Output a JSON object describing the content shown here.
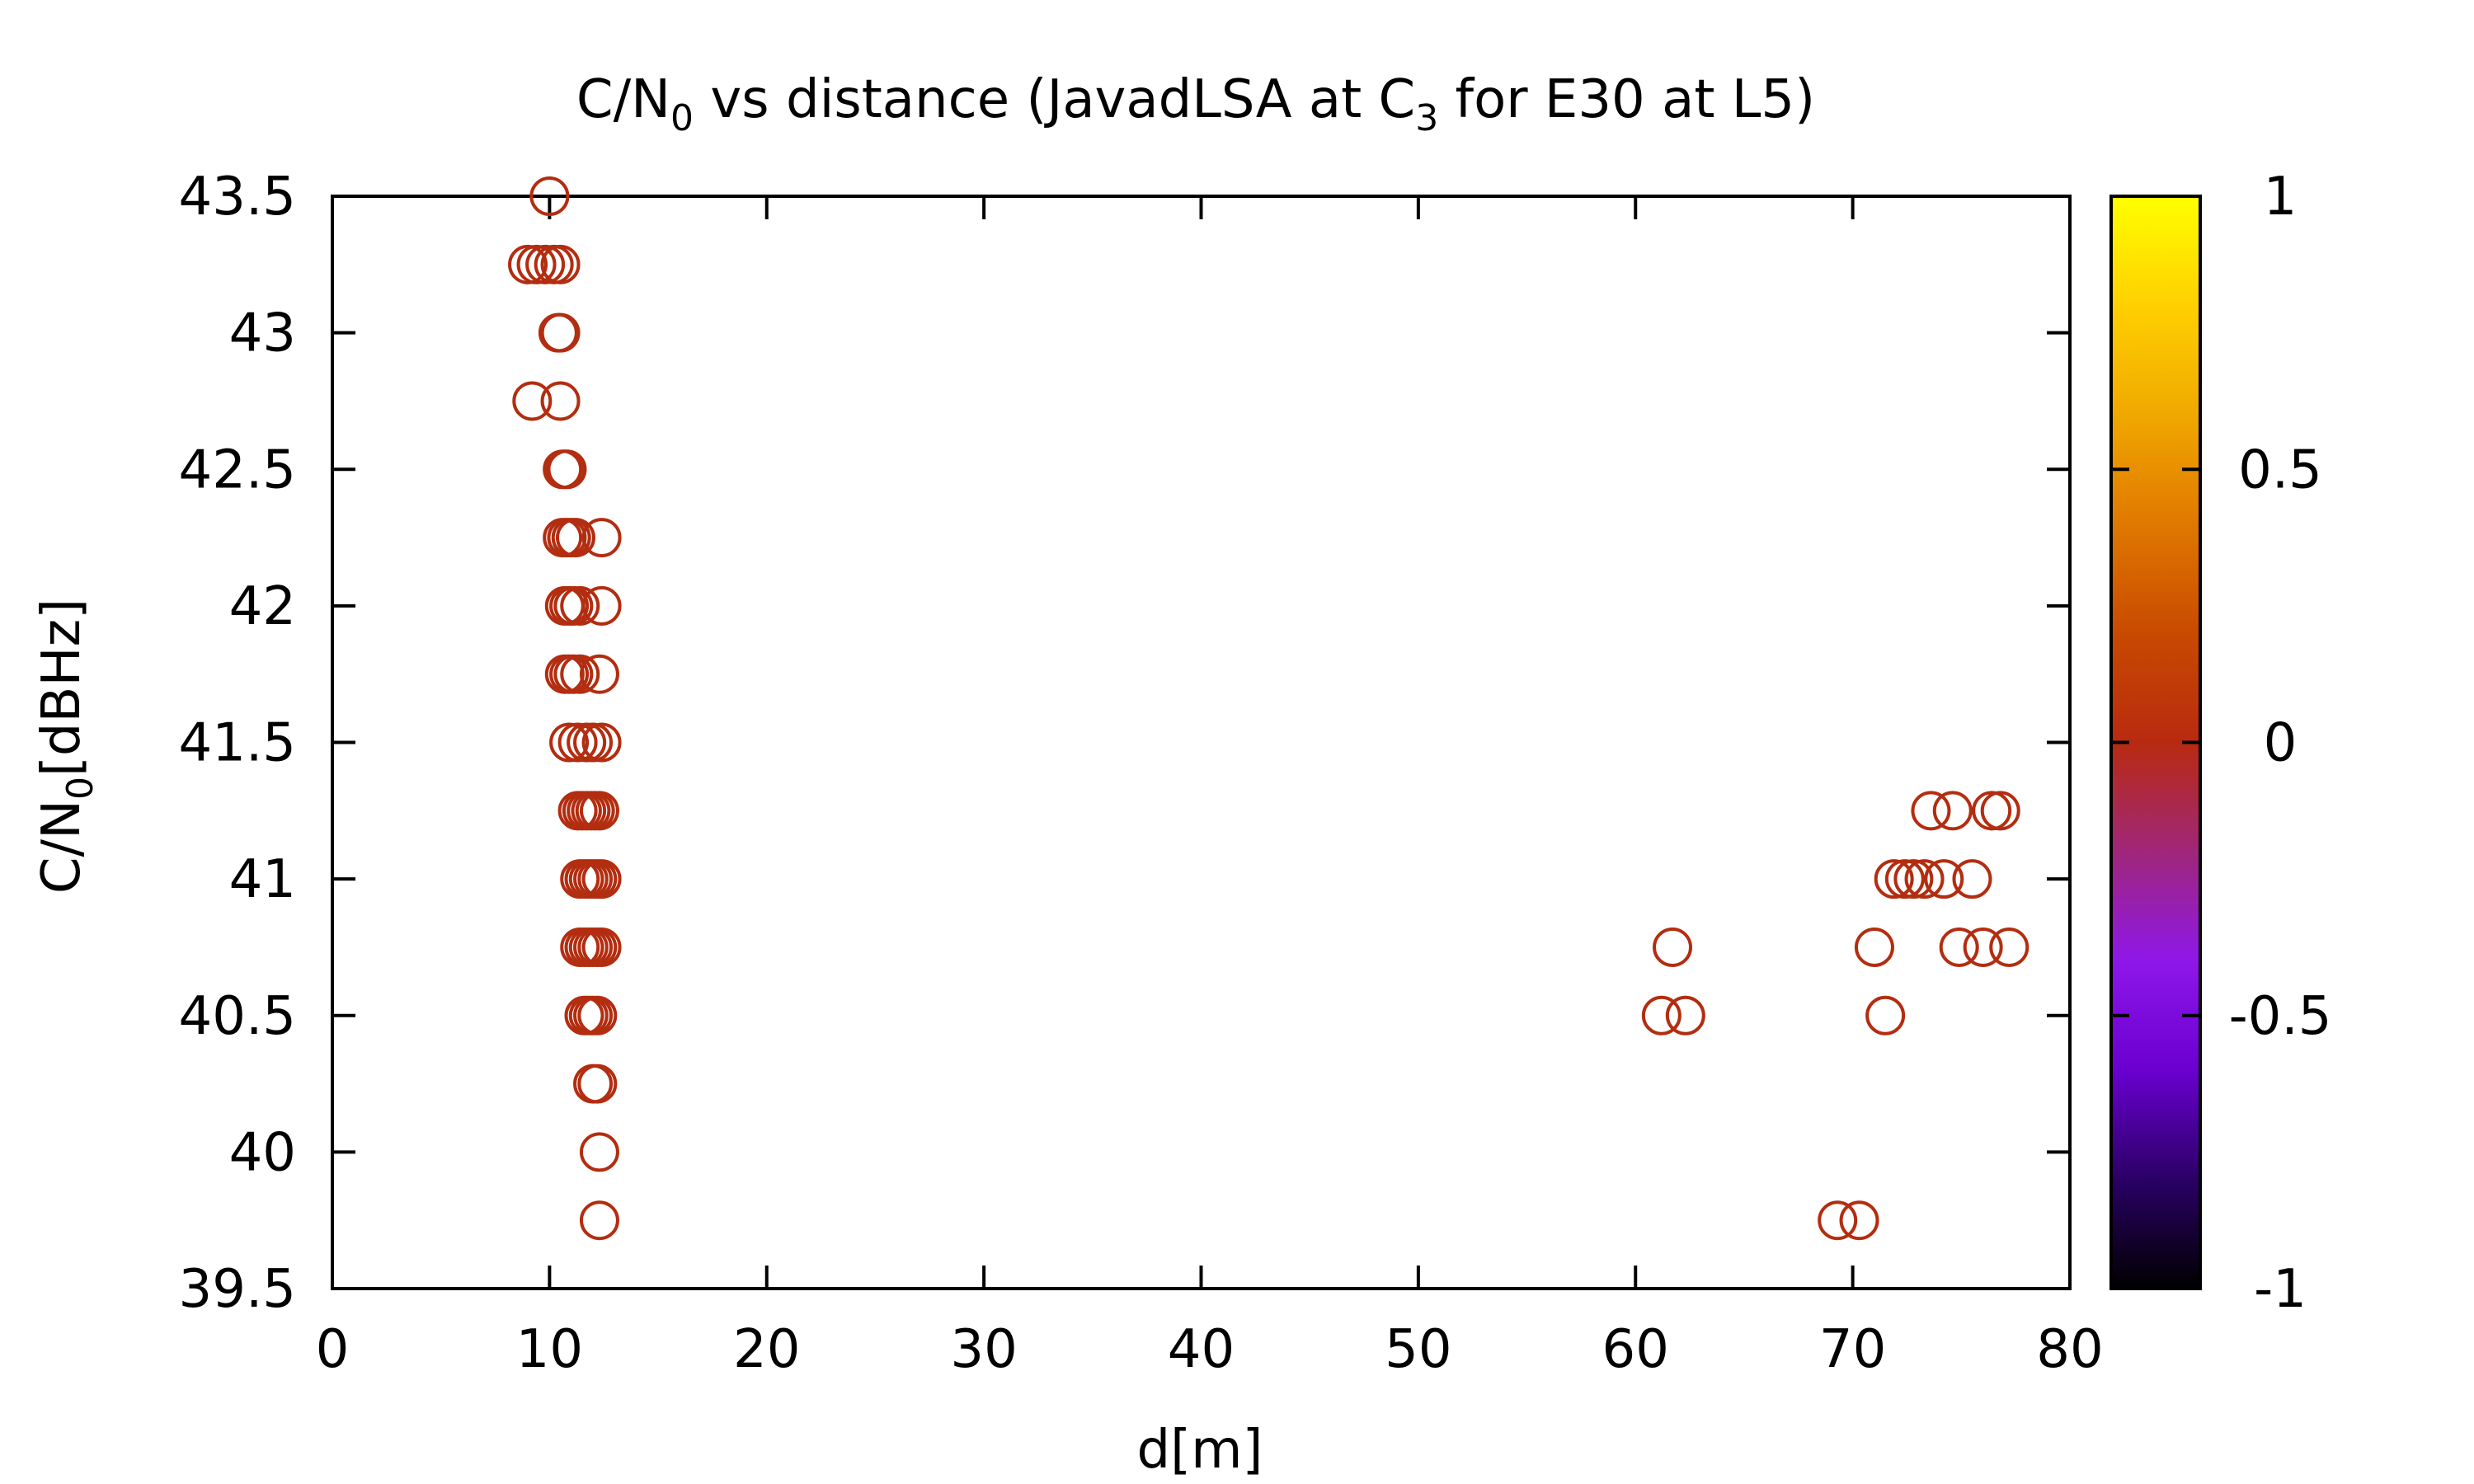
{
  "chart_data": {
    "type": "scatter",
    "title": {
      "parts": [
        "C/N",
        "0",
        " vs distance (JavadLSA at C",
        "3",
        " for E30 at L5)"
      ]
    },
    "xlabel": "d[m]",
    "ylabel": {
      "base": "C/N",
      "sub": "0",
      "rest": "[dBHz]"
    },
    "xlim": [
      0,
      80
    ],
    "ylim": [
      39.5,
      43.5
    ],
    "xticks": [
      "0",
      "10",
      "20",
      "30",
      "40",
      "50",
      "60",
      "70",
      "80"
    ],
    "yticks": [
      "39.5",
      "40",
      "40.5",
      "41",
      "41.5",
      "42",
      "42.5",
      "43",
      "43.5"
    ],
    "colorbar": {
      "range": [
        -1,
        1
      ],
      "ticks": [
        "-1",
        "-0.5",
        "0",
        "0.5",
        "1"
      ],
      "palette": [
        "#000000",
        "#2a0066",
        "#6a00d0",
        "#8e17e8",
        "#a0277a",
        "#b82a10",
        "#c84a00",
        "#e07800",
        "#f0a800",
        "#ffd000",
        "#ffff00"
      ]
    },
    "marker": "open-circle",
    "marker_color": "#b32d10",
    "series": [
      {
        "points": [
          [
            10.0,
            43.5
          ],
          [
            9.0,
            43.25
          ],
          [
            9.4,
            43.25
          ],
          [
            9.8,
            43.25
          ],
          [
            10.2,
            43.25
          ],
          [
            10.5,
            43.25
          ],
          [
            10.4,
            43.0
          ],
          [
            10.5,
            43.0
          ],
          [
            9.2,
            42.75
          ],
          [
            10.5,
            42.75
          ],
          [
            10.6,
            42.5
          ],
          [
            10.7,
            42.5
          ],
          [
            10.8,
            42.5
          ],
          [
            10.6,
            42.25
          ],
          [
            10.8,
            42.25
          ],
          [
            11.0,
            42.25
          ],
          [
            11.2,
            42.25
          ],
          [
            12.4,
            42.25
          ],
          [
            10.7,
            42.0
          ],
          [
            10.9,
            42.0
          ],
          [
            11.1,
            42.0
          ],
          [
            11.4,
            42.0
          ],
          [
            12.4,
            42.0
          ],
          [
            10.7,
            41.75
          ],
          [
            10.9,
            41.75
          ],
          [
            11.1,
            41.75
          ],
          [
            11.4,
            41.75
          ],
          [
            12.3,
            41.75
          ],
          [
            10.9,
            41.5
          ],
          [
            11.3,
            41.5
          ],
          [
            11.7,
            41.5
          ],
          [
            12.0,
            41.5
          ],
          [
            12.4,
            41.5
          ],
          [
            11.3,
            41.25
          ],
          [
            11.5,
            41.25
          ],
          [
            11.7,
            41.25
          ],
          [
            11.9,
            41.25
          ],
          [
            12.1,
            41.25
          ],
          [
            12.3,
            41.25
          ],
          [
            11.4,
            41.0
          ],
          [
            11.6,
            41.0
          ],
          [
            11.8,
            41.0
          ],
          [
            12.0,
            41.0
          ],
          [
            12.2,
            41.0
          ],
          [
            12.4,
            41.0
          ],
          [
            11.4,
            40.75
          ],
          [
            11.6,
            40.75
          ],
          [
            11.8,
            40.75
          ],
          [
            12.0,
            40.75
          ],
          [
            12.2,
            40.75
          ],
          [
            12.4,
            40.75
          ],
          [
            11.6,
            40.5
          ],
          [
            11.8,
            40.5
          ],
          [
            12.0,
            40.5
          ],
          [
            12.2,
            40.5
          ],
          [
            12.0,
            40.25
          ],
          [
            12.2,
            40.25
          ],
          [
            12.3,
            40.0
          ],
          [
            12.3,
            39.75
          ],
          [
            61.7,
            40.75
          ],
          [
            61.2,
            40.5
          ],
          [
            62.3,
            40.5
          ],
          [
            69.3,
            39.75
          ],
          [
            70.3,
            39.75
          ],
          [
            71.0,
            40.75
          ],
          [
            71.5,
            40.5
          ],
          [
            71.9,
            41.0
          ],
          [
            72.4,
            41.0
          ],
          [
            72.8,
            41.0
          ],
          [
            73.3,
            41.0
          ],
          [
            74.2,
            41.0
          ],
          [
            75.5,
            41.0
          ],
          [
            73.6,
            41.25
          ],
          [
            74.6,
            41.25
          ],
          [
            76.4,
            41.25
          ],
          [
            76.8,
            41.25
          ],
          [
            74.9,
            40.75
          ],
          [
            76.0,
            40.75
          ],
          [
            77.2,
            40.75
          ]
        ]
      }
    ]
  }
}
